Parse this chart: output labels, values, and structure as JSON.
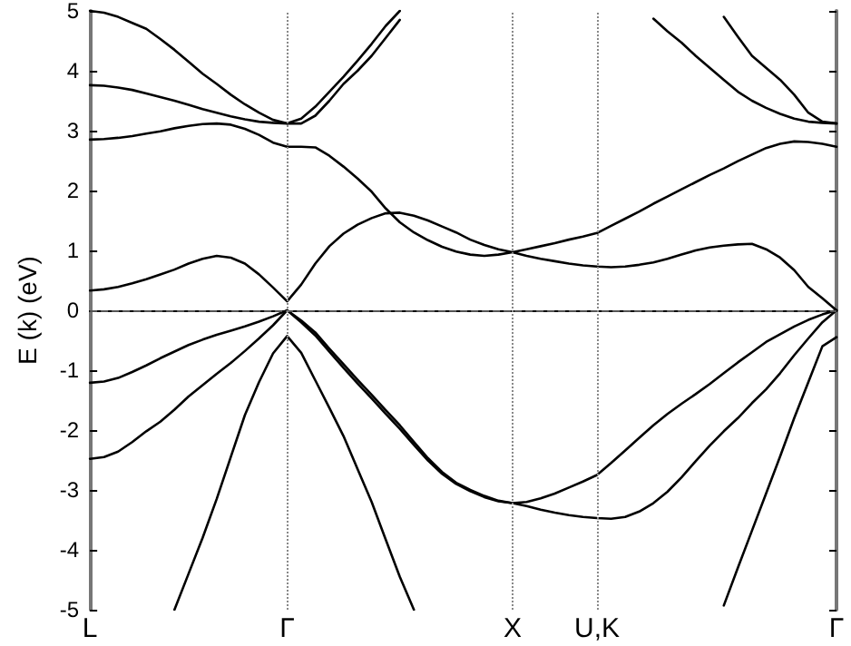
{
  "chart_data": {
    "type": "line",
    "ylabel": "E (k) (eV)",
    "ylim": [
      -5,
      5
    ],
    "categories": [
      "L",
      null,
      null,
      null,
      null,
      null,
      null,
      null,
      null,
      null,
      null,
      null,
      null,
      null,
      "Γ",
      null,
      null,
      null,
      null,
      null,
      null,
      null,
      null,
      null,
      null,
      null,
      null,
      null,
      null,
      null,
      "X",
      null,
      null,
      null,
      null,
      null,
      "U,K",
      null,
      null,
      null,
      null,
      null,
      null,
      null,
      null,
      null,
      null,
      null,
      null,
      null,
      null,
      null,
      null,
      "Γ"
    ],
    "yticks": [
      -5,
      -4,
      -3,
      -2,
      -1,
      0,
      1,
      2,
      3,
      4,
      5
    ],
    "marker": "none",
    "line_style": "solid",
    "ref_lines": [
      {
        "axis": "y",
        "value": 0,
        "color": "#555555",
        "line_style": "dashed"
      },
      {
        "axis": "x",
        "value": "Γ",
        "color": "#888888",
        "line_style": "dotted"
      },
      {
        "axis": "x",
        "value": "X",
        "color": "#888888",
        "line_style": "dotted"
      },
      {
        "axis": "x",
        "value": "U,K",
        "color": "#888888",
        "line_style": "dotted"
      }
    ],
    "series": [
      {
        "color": "#000000",
        "values": [
          -2.48,
          -2.45,
          -2.36,
          -2.2,
          -2.02,
          -1.86,
          -1.66,
          -1.44,
          -1.25,
          -1.06,
          -0.88,
          -0.68,
          -0.47,
          -0.25,
          0,
          -0.17,
          -0.37,
          -0.64,
          -0.9,
          -1.16,
          -1.41,
          -1.67,
          -1.92,
          -2.2,
          -2.47,
          -2.7,
          -2.88,
          -3.0,
          -3.1,
          -3.18,
          -3.22,
          -3.2,
          -3.14,
          -3.06,
          -2.96,
          -2.86,
          -2.75,
          -2.55,
          -2.34,
          -2.13,
          -1.92,
          -1.73,
          -1.56,
          -1.4,
          -1.23,
          -1.05,
          -0.87,
          -0.7,
          -0.53,
          -0.4,
          -0.27,
          -0.16,
          -0.07,
          0
        ]
      },
      {
        "color": "#000000",
        "values": [
          -1.21,
          -1.19,
          -1.13,
          -1.03,
          -0.92,
          -0.8,
          -0.69,
          -0.58,
          -0.49,
          -0.41,
          -0.34,
          -0.27,
          -0.19,
          -0.1,
          0,
          -0.2,
          -0.42,
          -0.69,
          -0.96,
          -1.22,
          -1.47,
          -1.73,
          -1.98,
          -2.25,
          -2.51,
          -2.73,
          -2.9,
          -3.02,
          -3.12,
          -3.19,
          -3.22,
          -3.27,
          -3.33,
          -3.38,
          -3.42,
          -3.45,
          -3.47,
          -3.48,
          -3.45,
          -3.36,
          -3.22,
          -3.03,
          -2.79,
          -2.52,
          -2.26,
          -2.02,
          -1.8,
          -1.55,
          -1.32,
          -1.05,
          -0.75,
          -0.47,
          -0.2,
          0
        ]
      },
      {
        "color": "#000000",
        "values": [
          null,
          null,
          null,
          null,
          null,
          null,
          -5,
          -4.4,
          -3.8,
          -3.15,
          -2.45,
          -1.75,
          -1.2,
          -0.72,
          -0.43,
          -0.71,
          -1.17,
          -1.63,
          -2.1,
          -2.65,
          -3.2,
          -3.83,
          -4.45,
          -5,
          null,
          null,
          null,
          null,
          null,
          null,
          null,
          null,
          null,
          null,
          null,
          null,
          null,
          null,
          null,
          null,
          null,
          null,
          null,
          null,
          null,
          -4.93,
          -4.3,
          -3.68,
          -3.06,
          -2.44,
          -1.8,
          -1.2,
          -0.6,
          -0.45
        ]
      },
      {
        "color": "#000000",
        "values": [
          0.33,
          0.35,
          0.39,
          0.45,
          0.52,
          0.6,
          0.68,
          0.78,
          0.86,
          0.91,
          0.88,
          0.78,
          0.6,
          0.38,
          0.15,
          0.43,
          0.78,
          1.07,
          1.28,
          1.43,
          1.54,
          1.62,
          1.63,
          1.58,
          1.5,
          1.4,
          1.3,
          1.18,
          1.09,
          1.02,
          0.97,
          0.91,
          0.86,
          0.82,
          0.78,
          0.75,
          0.73,
          0.72,
          0.73,
          0.76,
          0.8,
          0.86,
          0.93,
          1.0,
          1.05,
          1.08,
          1.1,
          1.11,
          1.02,
          0.88,
          0.67,
          0.39,
          0.2,
          0
        ]
      },
      {
        "color": "#000000",
        "values": [
          2.85,
          2.86,
          2.88,
          2.91,
          2.95,
          2.99,
          3.04,
          3.08,
          3.11,
          3.12,
          3.1,
          3.03,
          2.93,
          2.8,
          2.73,
          2.73,
          2.72,
          2.58,
          2.4,
          2.2,
          1.98,
          1.7,
          1.47,
          1.3,
          1.17,
          1.06,
          0.98,
          0.93,
          0.91,
          0.93,
          0.97,
          1.02,
          1.07,
          1.12,
          1.18,
          1.23,
          1.29,
          1.41,
          1.53,
          1.65,
          1.78,
          1.9,
          2.02,
          2.14,
          2.26,
          2.37,
          2.49,
          2.6,
          2.71,
          2.78,
          2.82,
          2.81,
          2.78,
          2.73
        ]
      },
      {
        "color": "#000000",
        "values": [
          3.76,
          3.75,
          3.72,
          3.68,
          3.62,
          3.56,
          3.5,
          3.43,
          3.36,
          3.3,
          3.24,
          3.19,
          3.15,
          3.13,
          3.12,
          3.12,
          3.25,
          3.5,
          3.78,
          4.0,
          4.25,
          4.55,
          4.85,
          null,
          null,
          null,
          null,
          null,
          null,
          null,
          null,
          null,
          null,
          null,
          null,
          null,
          null,
          null,
          null,
          null,
          null,
          null,
          null,
          null,
          null,
          4.9,
          4.57,
          4.25,
          4.05,
          3.85,
          3.6,
          3.3,
          3.15,
          3.12
        ]
      },
      {
        "color": "#000000",
        "values": [
          5,
          4.97,
          4.9,
          4.8,
          4.7,
          4.53,
          4.35,
          4.15,
          3.95,
          3.78,
          3.6,
          3.44,
          3.3,
          3.18,
          3.12,
          3.2,
          3.4,
          3.65,
          3.9,
          4.17,
          4.45,
          4.75,
          5,
          null,
          null,
          null,
          null,
          null,
          null,
          null,
          null,
          null,
          null,
          null,
          null,
          null,
          null,
          null,
          null,
          null,
          4.87,
          4.66,
          4.47,
          4.25,
          4.05,
          3.85,
          3.65,
          3.5,
          3.38,
          3.28,
          3.2,
          3.15,
          3.13,
          3.12
        ]
      }
    ]
  }
}
